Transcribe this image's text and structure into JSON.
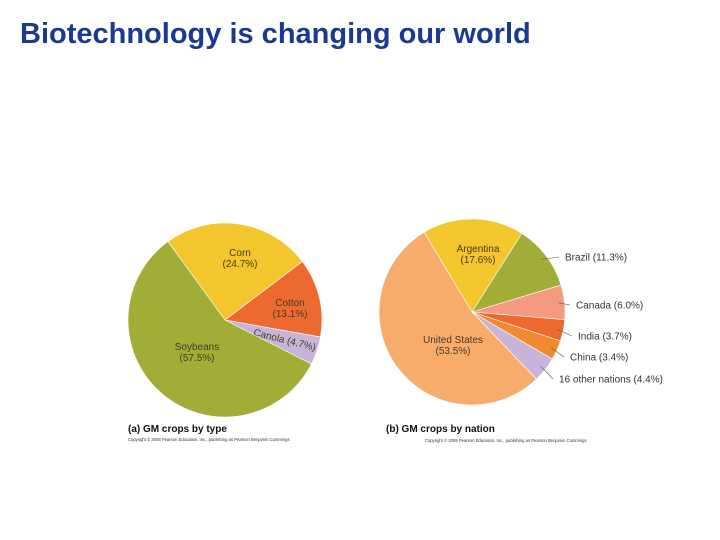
{
  "slide": {
    "title": "Biotechnology is changing our world"
  },
  "chart_data": [
    {
      "type": "pie",
      "caption": "(a) GM crops by type",
      "copyright": "Copyright © 2008 Pearson Education, Inc., publishing as Pearson Benjamin Cummings",
      "slices": [
        {
          "name": "Corn",
          "value": 24.7,
          "pct_label": "(24.7%)",
          "color": "#f2c62c"
        },
        {
          "name": "Cotton",
          "value": 13.1,
          "pct_label": "(13.1%)",
          "color": "#ec6a2f"
        },
        {
          "name": "Canola",
          "value": 4.7,
          "pct_label": "(4.7%)",
          "color": "#c7b4d8"
        },
        {
          "name": "Soybeans",
          "value": 57.5,
          "pct_label": "(57.5%)",
          "color": "#a2ad38"
        }
      ]
    },
    {
      "type": "pie",
      "caption": "(b) GM crops by nation",
      "copyright": "Copyright © 2008 Pearson Education, Inc., publishing as Pearson Benjamin Cummings",
      "slices": [
        {
          "name": "Argentina",
          "value": 17.6,
          "pct_label": "(17.6%)",
          "color": "#f2c62c"
        },
        {
          "name": "Brazil",
          "value": 11.3,
          "pct_label": "(11.3%)",
          "color": "#a2ad38"
        },
        {
          "name": "Canada",
          "value": 6.0,
          "pct_label": "(6.0%)",
          "color": "#f39a80"
        },
        {
          "name": "India",
          "value": 3.7,
          "pct_label": "(3.7%)",
          "color": "#ec6a2f"
        },
        {
          "name": "China",
          "value": 3.4,
          "pct_label": "(3.4%)",
          "color": "#f08a30"
        },
        {
          "name": "16 other nations",
          "value": 4.4,
          "pct_label": "(4.4%)",
          "color": "#c7b4d8"
        },
        {
          "name": "United States",
          "value": 53.5,
          "pct_label": "(53.5%)",
          "color": "#f8ac6c"
        }
      ]
    }
  ]
}
